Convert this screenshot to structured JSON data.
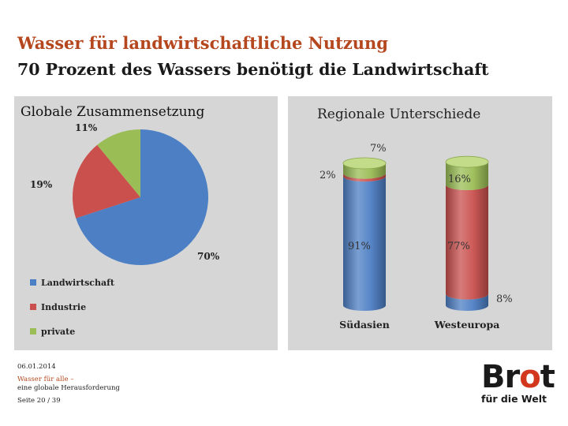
{
  "header": {
    "title": "Wasser für landwirtschaftliche Nutzung",
    "subtitle": "70 Prozent des Wassers benötigt die Landwirtschaft"
  },
  "colors": {
    "blue": "#4d7fc4",
    "red": "#c9504d",
    "green": "#9bbd56",
    "accent": "#b5471f"
  },
  "chart_data": [
    {
      "type": "pie",
      "title": "Globale Zusammensetzung",
      "categories": [
        "Landwirtschaft",
        "Industrie",
        "private"
      ],
      "values": [
        70,
        19,
        11
      ],
      "labels": [
        "70%",
        "19%",
        "11%"
      ],
      "legend_position": "bottom-left"
    },
    {
      "type": "bar",
      "stacked": true,
      "title": "Regionale Unterschiede",
      "categories": [
        "Südasien",
        "Westeuropa"
      ],
      "series": [
        {
          "name": "Landwirtschaft",
          "values": [
            91,
            8
          ],
          "labels": [
            "91%",
            "8%"
          ]
        },
        {
          "name": "Industrie",
          "values": [
            2,
            77
          ],
          "labels": [
            "2%",
            "77%"
          ]
        },
        {
          "name": "private",
          "values": [
            7,
            16
          ],
          "labels": [
            "7%",
            "16%"
          ]
        }
      ],
      "ylim": [
        0,
        100
      ]
    }
  ],
  "footer": {
    "date": "06.01.2014",
    "line1": "Wasser für alle –",
    "line2": "eine globale Herausforderung",
    "page": "Seite 20 / 39"
  },
  "logo": {
    "word_prefix": "Br",
    "word_o": "o",
    "word_suffix": "t",
    "sub": "für die Welt"
  }
}
